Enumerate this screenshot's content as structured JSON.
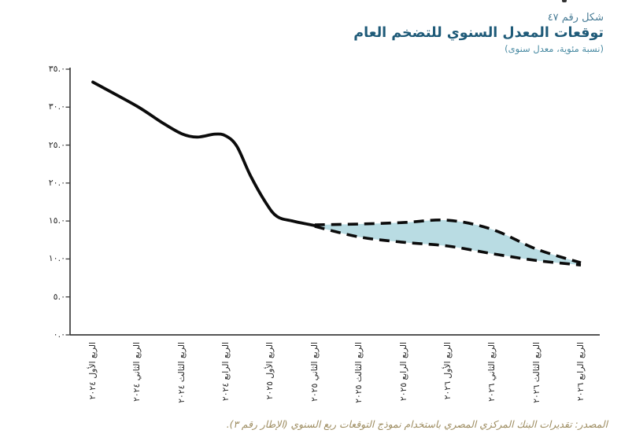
{
  "header": {
    "figure_label": "شكل رقم ٤٧",
    "title": "توقعات المعدل السنوي للتضخم العام",
    "subtitle": "(نسبة مئوية، معدل سنوى)",
    "figure_label_color": "#4a7d97",
    "title_color": "#1e5a78",
    "subtitle_color": "#4a8ba3"
  },
  "source": {
    "text": "المصدر: تقديرات البنك المركزي المصري باستخدام نموذج التوقعات ربع السنوي (الإطار رقم ٣).",
    "color": "#9d8c60"
  },
  "chart_data": {
    "type": "line",
    "title": "توقعات المعدل السنوي للتضخم العام",
    "subtitle": "(نسبة مئوية، معدل سنوى)",
    "ylim": [
      0,
      35
    ],
    "grid": false,
    "legend": false,
    "line_color": "#0b0b0b",
    "axis_color": "#3d3d3d",
    "band_fill": "#b9dce3",
    "y_axis_ticks": [
      {
        "value": 0,
        "label": "٠.٠"
      },
      {
        "value": 5,
        "label": "٥.٠"
      },
      {
        "value": 10,
        "label": "١٠.٠"
      },
      {
        "value": 15,
        "label": "١٥.٠"
      },
      {
        "value": 20,
        "label": "٢٠.٠"
      },
      {
        "value": 25,
        "label": "٢٥.٠"
      },
      {
        "value": 30,
        "label": "٣٠.٠"
      },
      {
        "value": 35,
        "label": "٣٥.٠"
      }
    ],
    "categories": [
      "الربع الأول ٢٠٢٤",
      "الربع الثاني ٢٠٢٤",
      "الربع الثالث ٢٠٢٤",
      "الربع الرابع ٢٠٢٤",
      "الربع الأول ٢٠٢٥",
      "الربع الثاني ٢٠٢٥",
      "الربع الثالث ٢٠٢٥",
      "الربع الرابع ٢٠٢٥",
      "الربع الأول ٢٠٢٦",
      "الربع الثاني ٢٠٢٦",
      "الربع الثالث ٢٠٢٦",
      "الربع الرابع ٢٠٢٦"
    ],
    "series": [
      {
        "name": "actual",
        "style": "solid",
        "start_index": 0,
        "values": [
          33.3,
          30.1,
          26.5,
          26.4,
          17.0,
          14.4
        ],
        "curve_samples": [
          [
            0,
            33.3
          ],
          [
            1,
            30.1
          ],
          [
            1.55,
            28.0
          ],
          [
            2,
            26.5
          ],
          [
            2.35,
            26.05
          ],
          [
            2.75,
            26.45
          ],
          [
            3.0,
            26.2
          ],
          [
            3.25,
            24.8
          ],
          [
            3.55,
            21.0
          ],
          [
            3.9,
            17.4
          ],
          [
            4.15,
            15.6
          ],
          [
            4.5,
            15.0
          ],
          [
            5,
            14.4
          ]
        ]
      },
      {
        "name": "forecast_upper",
        "style": "dashed",
        "start_index": 5,
        "values": [
          14.5,
          14.6,
          14.8,
          15.1,
          13.9,
          11.3,
          9.5
        ]
      },
      {
        "name": "forecast_lower",
        "style": "dashed",
        "start_index": 5,
        "values": [
          14.3,
          12.9,
          12.2,
          11.7,
          10.7,
          9.8,
          9.2
        ]
      }
    ],
    "band_between": [
      "forecast_upper",
      "forecast_lower"
    ]
  }
}
